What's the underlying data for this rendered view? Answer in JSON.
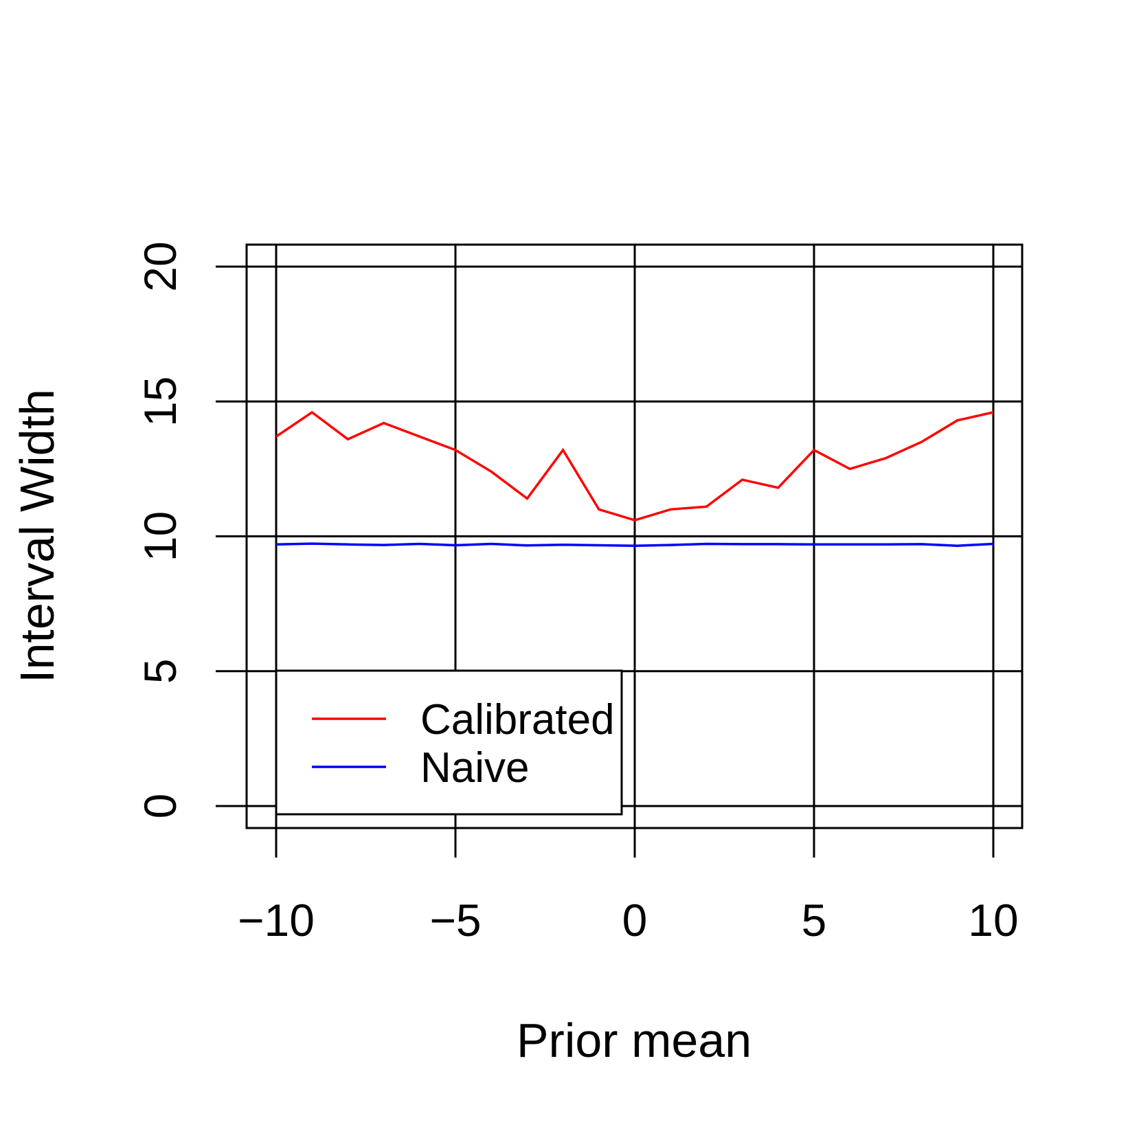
{
  "chart_data": {
    "type": "line",
    "title": "",
    "xlabel": "Prior mean",
    "ylabel": "Interval Width",
    "xlim": [
      -10,
      10
    ],
    "ylim": [
      0,
      20
    ],
    "x_ticks": [
      -10,
      -5,
      0,
      5,
      10
    ],
    "x_tick_labels": [
      "−10",
      "−5",
      "0",
      "5",
      "10"
    ],
    "y_ticks": [
      0,
      5,
      10,
      15,
      20
    ],
    "y_tick_labels": [
      "0",
      "5",
      "10",
      "15",
      "20"
    ],
    "grid": true,
    "legend_position": "bottom-left",
    "x": [
      -10,
      -9,
      -8,
      -7,
      -6,
      -5,
      -4,
      -3,
      -2,
      -1,
      0,
      1,
      2,
      3,
      4,
      5,
      6,
      7,
      8,
      9,
      10
    ],
    "series": [
      {
        "name": "Calibrated",
        "color": "#ff0000",
        "values": [
          13.7,
          14.6,
          13.6,
          14.2,
          13.7,
          13.2,
          12.4,
          11.4,
          13.2,
          11.0,
          10.6,
          11.0,
          11.1,
          12.1,
          11.8,
          13.2,
          12.5,
          12.9,
          13.5,
          14.3,
          14.6
        ]
      },
      {
        "name": "Naive",
        "color": "#0000ff",
        "values": [
          9.7,
          9.73,
          9.7,
          9.68,
          9.72,
          9.67,
          9.72,
          9.66,
          9.69,
          9.67,
          9.65,
          9.68,
          9.72,
          9.71,
          9.71,
          9.7,
          9.7,
          9.7,
          9.71,
          9.65,
          9.72
        ]
      }
    ]
  }
}
